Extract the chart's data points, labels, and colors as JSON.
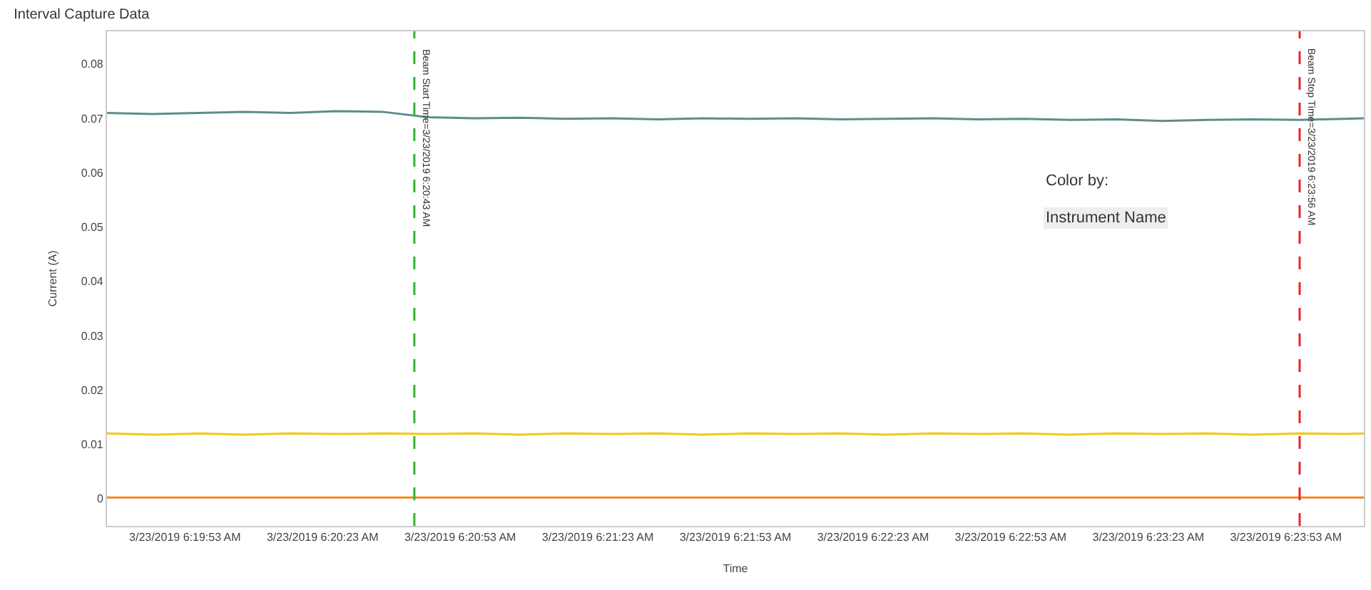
{
  "chart_data": {
    "type": "line",
    "title": "Interval Capture Data",
    "xlabel": "Time",
    "ylabel": "Current (A)",
    "annotations": [
      "Color by:",
      "Instrument Name"
    ],
    "x": [
      "2019-03-23T06:19:36",
      "2019-03-23T06:19:46",
      "2019-03-23T06:19:56",
      "2019-03-23T06:20:06",
      "2019-03-23T06:20:16",
      "2019-03-23T06:20:26",
      "2019-03-23T06:20:36",
      "2019-03-23T06:20:46",
      "2019-03-23T06:20:56",
      "2019-03-23T06:21:06",
      "2019-03-23T06:21:16",
      "2019-03-23T06:21:26",
      "2019-03-23T06:21:36",
      "2019-03-23T06:21:46",
      "2019-03-23T06:21:56",
      "2019-03-23T06:22:06",
      "2019-03-23T06:22:16",
      "2019-03-23T06:22:26",
      "2019-03-23T06:22:36",
      "2019-03-23T06:22:46",
      "2019-03-23T06:22:56",
      "2019-03-23T06:23:06",
      "2019-03-23T06:23:16",
      "2019-03-23T06:23:26",
      "2019-03-23T06:23:36",
      "2019-03-23T06:23:46",
      "2019-03-23T06:23:56",
      "2019-03-23T06:24:06",
      "2019-03-23T06:24:10"
    ],
    "series": [
      {
        "color": "#f2c811",
        "values": [
          0.012,
          0.0118,
          0.012,
          0.0118,
          0.012,
          0.0119,
          0.012,
          0.0119,
          0.012,
          0.0118,
          0.012,
          0.0119,
          0.012,
          0.0118,
          0.012,
          0.0119,
          0.012,
          0.0118,
          0.012,
          0.0119,
          0.012,
          0.0118,
          0.012,
          0.0119,
          0.012,
          0.0118,
          0.012,
          0.0119,
          0.012
        ]
      },
      {
        "color": "#f28a1e",
        "values": [
          0.0002,
          0.0002,
          0.0002,
          0.0002,
          0.0002,
          0.0002,
          0.0002,
          0.0002,
          0.0002,
          0.0002,
          0.0002,
          0.0002,
          0.0002,
          0.0002,
          0.0002,
          0.0002,
          0.0002,
          0.0002,
          0.0002,
          0.0002,
          0.0002,
          0.0002,
          0.0002,
          0.0002,
          0.0002,
          0.0002,
          0.0002,
          0.0002,
          0.0002
        ]
      },
      {
        "color": "#5b8e8c",
        "values": [
          0.071,
          0.0708,
          0.071,
          0.0712,
          0.071,
          0.0713,
          0.0712,
          0.0702,
          0.07,
          0.0701,
          0.0699,
          0.07,
          0.0698,
          0.07,
          0.0699,
          0.07,
          0.0698,
          0.0699,
          0.07,
          0.0698,
          0.0699,
          0.0697,
          0.0698,
          0.0695,
          0.0697,
          0.0698,
          0.0697,
          0.0699,
          0.07
        ]
      }
    ],
    "xlim": [
      "2019-03-23T06:19:36",
      "2019-03-23T06:24:10"
    ],
    "xticks": [
      {
        "value": "2019-03-23T06:19:53",
        "label": "3/23/2019 6:19:53 AM"
      },
      {
        "value": "2019-03-23T06:20:23",
        "label": "3/23/2019 6:20:23 AM"
      },
      {
        "value": "2019-03-23T06:20:53",
        "label": "3/23/2019 6:20:53 AM"
      },
      {
        "value": "2019-03-23T06:21:23",
        "label": "3/23/2019 6:21:23 AM"
      },
      {
        "value": "2019-03-23T06:21:53",
        "label": "3/23/2019 6:21:53 AM"
      },
      {
        "value": "2019-03-23T06:22:23",
        "label": "3/23/2019 6:22:23 AM"
      },
      {
        "value": "2019-03-23T06:22:53",
        "label": "3/23/2019 6:22:53 AM"
      },
      {
        "value": "2019-03-23T06:23:23",
        "label": "3/23/2019 6:23:23 AM"
      },
      {
        "value": "2019-03-23T06:23:53",
        "label": "3/23/2019 6:23:53 AM"
      }
    ],
    "ylim": [
      -0.005,
      0.086
    ],
    "yticks": [
      {
        "value": 0,
        "label": "0"
      },
      {
        "value": 0.01,
        "label": "0.01"
      },
      {
        "value": 0.02,
        "label": "0.02"
      },
      {
        "value": 0.03,
        "label": "0.03"
      },
      {
        "value": 0.04,
        "label": "0.04"
      },
      {
        "value": 0.05,
        "label": "0.05"
      },
      {
        "value": 0.06,
        "label": "0.06"
      },
      {
        "value": 0.07,
        "label": "0.07"
      },
      {
        "value": 0.08,
        "label": "0.08"
      }
    ],
    "ref_lines": [
      {
        "axis": "x",
        "value": "2019-03-23T06:20:43",
        "label": "Beam Start Time=3/23/2019 6:20:43 AM",
        "color": "#2eb82e",
        "line_style": "dashed"
      },
      {
        "axis": "x",
        "value": "2019-03-23T06:23:56",
        "label": "Beam Stop Time=3/23/2019 6:23:56 AM",
        "color": "#e8262b",
        "line_style": "dashed"
      }
    ],
    "line_style": "solid",
    "marker": "none"
  }
}
